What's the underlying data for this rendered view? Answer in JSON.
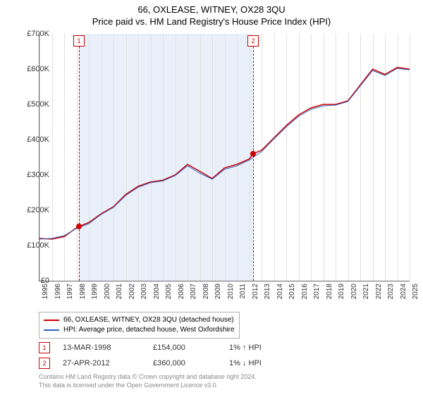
{
  "title": {
    "main": "66, OXLEASE, WITNEY, OX28 3QU",
    "sub": "Price paid vs. HM Land Registry's House Price Index (HPI)"
  },
  "chart": {
    "type": "line",
    "background_color": "#ffffff",
    "grid_color": "#e0e0e0",
    "axis_color": "#666666",
    "ylim": [
      0,
      700000
    ],
    "ytick_step": 100000,
    "ytick_labels": [
      "£0",
      "£100K",
      "£200K",
      "£300K",
      "£400K",
      "£500K",
      "£600K",
      "£700K"
    ],
    "xstart": 1995,
    "xend": 2025,
    "xtick_step": 1,
    "xtick_labels": [
      "1995",
      "1996",
      "1997",
      "1998",
      "1999",
      "2000",
      "2001",
      "2002",
      "2003",
      "2004",
      "2005",
      "2006",
      "2007",
      "2008",
      "2009",
      "2010",
      "2011",
      "2012",
      "2013",
      "2014",
      "2015",
      "2016",
      "2017",
      "2018",
      "2019",
      "2020",
      "2021",
      "2022",
      "2023",
      "2024",
      "2025"
    ],
    "shaded_band": {
      "start": 1998.2,
      "end": 2012.32,
      "color": "#eaf0fa"
    },
    "series": [
      {
        "name": "66, OXLEASE, WITNEY, OX28 3QU (detached house)",
        "color": "#cc0000",
        "width": 1.5,
        "points": [
          [
            1995,
            120000
          ],
          [
            1996,
            118000
          ],
          [
            1997,
            125000
          ],
          [
            1998,
            150000
          ],
          [
            1998.2,
            154000
          ],
          [
            1999,
            165000
          ],
          [
            2000,
            190000
          ],
          [
            2001,
            210000
          ],
          [
            2002,
            245000
          ],
          [
            2003,
            268000
          ],
          [
            2004,
            280000
          ],
          [
            2005,
            285000
          ],
          [
            2006,
            300000
          ],
          [
            2007,
            330000
          ],
          [
            2008,
            310000
          ],
          [
            2009,
            290000
          ],
          [
            2010,
            320000
          ],
          [
            2011,
            330000
          ],
          [
            2012,
            345000
          ],
          [
            2012.32,
            360000
          ],
          [
            2013,
            370000
          ],
          [
            2014,
            405000
          ],
          [
            2015,
            440000
          ],
          [
            2016,
            470000
          ],
          [
            2017,
            490000
          ],
          [
            2018,
            500000
          ],
          [
            2019,
            500000
          ],
          [
            2020,
            510000
          ],
          [
            2021,
            555000
          ],
          [
            2022,
            600000
          ],
          [
            2023,
            585000
          ],
          [
            2024,
            605000
          ],
          [
            2025,
            600000
          ]
        ]
      },
      {
        "name": "HPI: Average price, detached house, West Oxfordshire",
        "color": "#3060c0",
        "width": 1,
        "points": [
          [
            1995,
            118000
          ],
          [
            1996,
            120000
          ],
          [
            1997,
            128000
          ],
          [
            1998,
            148000
          ],
          [
            1999,
            162000
          ],
          [
            2000,
            188000
          ],
          [
            2001,
            208000
          ],
          [
            2002,
            242000
          ],
          [
            2003,
            265000
          ],
          [
            2004,
            278000
          ],
          [
            2005,
            283000
          ],
          [
            2006,
            298000
          ],
          [
            2007,
            326000
          ],
          [
            2008,
            305000
          ],
          [
            2009,
            288000
          ],
          [
            2010,
            316000
          ],
          [
            2011,
            326000
          ],
          [
            2012,
            342000
          ],
          [
            2013,
            366000
          ],
          [
            2014,
            402000
          ],
          [
            2015,
            436000
          ],
          [
            2016,
            466000
          ],
          [
            2017,
            486000
          ],
          [
            2018,
            496000
          ],
          [
            2019,
            498000
          ],
          [
            2020,
            508000
          ],
          [
            2021,
            552000
          ],
          [
            2022,
            596000
          ],
          [
            2023,
            582000
          ],
          [
            2024,
            602000
          ],
          [
            2025,
            598000
          ]
        ]
      }
    ],
    "sale_markers": [
      {
        "n": "1",
        "x": 1998.2,
        "y": 154000,
        "dot_color": "#d00000",
        "box_color": "#cc0000"
      },
      {
        "n": "2",
        "x": 2012.32,
        "y": 360000,
        "dot_color": "#d00000",
        "box_color": "#cc0000"
      }
    ]
  },
  "legend": {
    "items": [
      {
        "label": "66, OXLEASE, WITNEY, OX28 3QU (detached house)",
        "color": "#cc0000"
      },
      {
        "label": "HPI: Average price, detached house, West Oxfordshire",
        "color": "#3060c0"
      }
    ]
  },
  "sales": [
    {
      "n": "1",
      "date": "13-MAR-1998",
      "price": "£154,000",
      "pct": "1% ↑ HPI"
    },
    {
      "n": "2",
      "date": "27-APR-2012",
      "price": "£360,000",
      "pct": "1% ↓ HPI"
    }
  ],
  "footer": {
    "line1": "Contains HM Land Registry data © Crown copyright and database right 2024.",
    "line2": "This data is licensed under the Open Government Licence v3.0."
  }
}
